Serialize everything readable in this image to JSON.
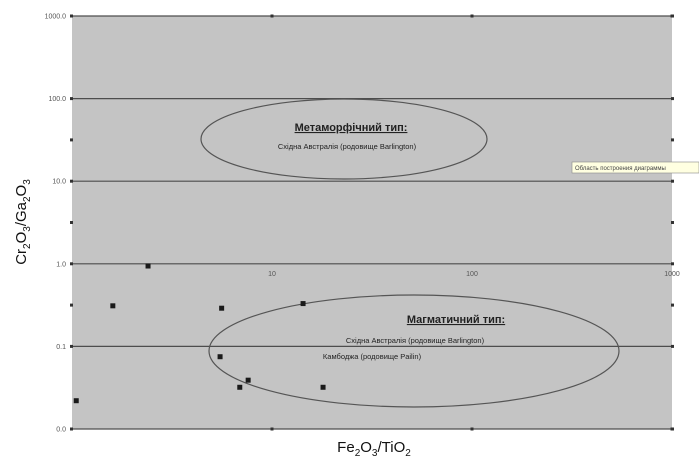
{
  "chart_data": {
    "type": "scatter",
    "x_scale": "log",
    "y_scale": "log",
    "xlim": [
      1,
      1000
    ],
    "ylim": [
      0.01,
      1000
    ],
    "grid": true,
    "xlabel": "Fe2O3/TiO2",
    "ylabel": "Cr2O3/Ga2O3",
    "x_tick_labels": [
      {
        "value": 10,
        "label": "10"
      },
      {
        "value": 100,
        "label": "100"
      },
      {
        "value": 1000,
        "label": "1000"
      }
    ],
    "y_tick_labels": [
      {
        "value": 1000,
        "label": "1000.0"
      },
      {
        "value": 100,
        "label": "100.0"
      },
      {
        "value": 10,
        "label": "10.0"
      },
      {
        "value": 1,
        "label": "1.0"
      },
      {
        "value": 0.1,
        "label": "0.1"
      },
      {
        "value": 0.01,
        "label": "0.0"
      }
    ],
    "points": [
      {
        "x": 1.05,
        "y": 0.022
      },
      {
        "x": 1.6,
        "y": 0.31
      },
      {
        "x": 2.4,
        "y": 0.94
      },
      {
        "x": 5.6,
        "y": 0.29
      },
      {
        "x": 5.5,
        "y": 0.075
      },
      {
        "x": 6.9,
        "y": 0.032
      },
      {
        "x": 7.6,
        "y": 0.039
      },
      {
        "x": 14.3,
        "y": 0.33
      },
      {
        "x": 18.0,
        "y": 0.032
      }
    ],
    "annotations": {
      "metamorphic": {
        "title": "Метаморфічний тип:",
        "line1": "Східна Австралія (родовище Barlington)"
      },
      "magmatic": {
        "title": "Магматичний тип:",
        "line1": "Східна Австралія (родовище Barlington)",
        "line2": "Камбоджа (родовище Pailin)"
      },
      "tooltip": "Область построения диаграммы"
    }
  },
  "colors": {
    "plot_background": "#c4c4c4",
    "grid": "#4d4d4d",
    "point": "#1a1a1a",
    "ellipse": "#555555"
  }
}
